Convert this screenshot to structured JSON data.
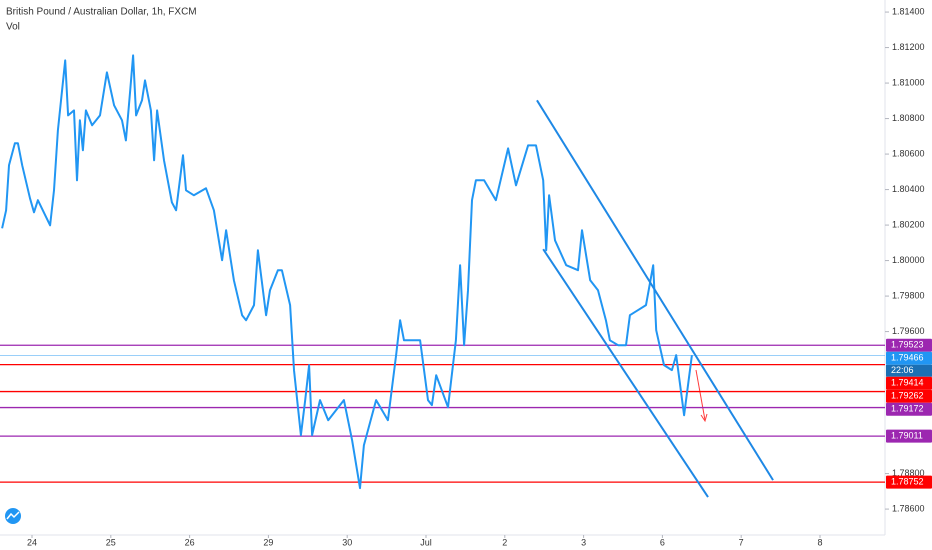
{
  "chart_data": {
    "type": "line",
    "title": "British Pound / Australian Dollar, 1h, FXCM",
    "subtitle": "Vol",
    "color": "#2196f3",
    "xlim": [
      -9.75,
      259.8
    ],
    "ylim": [
      1.78454,
      1.81468
    ],
    "xticks": [
      {
        "value": 0,
        "label": "24"
      },
      {
        "value": 24,
        "label": "25"
      },
      {
        "value": 48,
        "label": "26"
      },
      {
        "value": 72,
        "label": "29"
      },
      {
        "value": 96,
        "label": "30"
      },
      {
        "value": 120,
        "label": "Jul"
      },
      {
        "value": 144,
        "label": "2"
      },
      {
        "value": 168,
        "label": "3"
      },
      {
        "value": 192,
        "label": "6"
      },
      {
        "value": 216,
        "label": "7"
      },
      {
        "value": 240,
        "label": "8"
      }
    ],
    "yticks": [
      {
        "value": 1.786,
        "label": "1.78600"
      },
      {
        "value": 1.788,
        "label": "1.78800"
      },
      {
        "value": 1.796,
        "label": "1.79600"
      },
      {
        "value": 1.798,
        "label": "1.79800"
      },
      {
        "value": 1.8,
        "label": "1.80000"
      },
      {
        "value": 1.802,
        "label": "1.80200"
      },
      {
        "value": 1.804,
        "label": "1.80400"
      },
      {
        "value": 1.806,
        "label": "1.80600"
      },
      {
        "value": 1.808,
        "label": "1.80800"
      },
      {
        "value": 1.81,
        "label": "1.81000"
      },
      {
        "value": 1.812,
        "label": "1.81200"
      },
      {
        "value": 1.814,
        "label": "1.81400"
      }
    ],
    "x": [
      -9.1,
      -7.9,
      -7.0,
      -5.2,
      -4.3,
      -3.0,
      -0.6,
      0.6,
      1.8,
      5.5,
      6.7,
      7.9,
      10.1,
      11.0,
      12.8,
      13.7,
      14.6,
      15.5,
      16.4,
      18.3,
      20.7,
      22.8,
      25.0,
      27.4,
      28.6,
      29.9,
      30.8,
      31.7,
      33.5,
      34.4,
      36.2,
      37.2,
      38.1,
      40.2,
      42.6,
      43.9,
      46.0,
      46.9,
      49.3,
      53.0,
      55.4,
      57.9,
      59.1,
      61.5,
      64.0,
      65.2,
      67.6,
      68.8,
      71.3,
      72.5,
      74.9,
      76.1,
      78.6,
      79.8,
      81.9,
      83.2,
      84.4,
      85.3,
      87.7,
      90.2,
      95.0,
      97.5,
      99.9,
      101.1,
      104.8,
      108.4,
      110.9,
      112.1,
      113.3,
      118.2,
      120.6,
      121.8,
      123.1,
      126.7,
      129.1,
      130.4,
      131.6,
      132.8,
      134.0,
      135.2,
      137.7,
      141.3,
      145.0,
      147.4,
      151.1,
      153.5,
      155.7,
      156.6,
      157.5,
      159.3,
      162.7,
      166.3,
      167.5,
      170.0,
      172.4,
      174.8,
      176.0,
      178.5,
      180.9,
      182.1,
      187.0,
      189.2,
      190.1,
      192.5,
      194.9,
      196.2,
      198.6,
      201.0
    ],
    "values": [
      1.80182,
      1.80283,
      1.80537,
      1.80661,
      1.80661,
      1.80537,
      1.80351,
      1.80272,
      1.8034,
      1.80199,
      1.80396,
      1.80734,
      1.81128,
      1.80818,
      1.80846,
      1.80452,
      1.8079,
      1.80621,
      1.80846,
      1.80762,
      1.80818,
      1.8106,
      1.80875,
      1.8079,
      1.80677,
      1.80959,
      1.81156,
      1.80818,
      1.80903,
      1.81015,
      1.80846,
      1.80565,
      1.80846,
      1.80565,
      1.80328,
      1.80283,
      1.80593,
      1.80396,
      1.80368,
      1.80407,
      1.80283,
      1.80002,
      1.80171,
      1.79889,
      1.79692,
      1.79664,
      1.79749,
      1.80058,
      1.79692,
      1.79833,
      1.79946,
      1.79946,
      1.79749,
      1.79383,
      1.79017,
      1.79214,
      1.79411,
      1.79017,
      1.79214,
      1.79101,
      1.79214,
      1.78988,
      1.78718,
      1.7896,
      1.79214,
      1.79101,
      1.79467,
      1.79664,
      1.79551,
      1.79551,
      1.79214,
      1.79186,
      1.79354,
      1.79174,
      1.79551,
      1.79974,
      1.79523,
      1.79833,
      1.8034,
      1.80452,
      1.80452,
      1.8034,
      1.80632,
      1.80424,
      1.80649,
      1.80649,
      1.80452,
      1.80058,
      1.80368,
      1.80114,
      1.79974,
      1.79946,
      1.80171,
      1.79889,
      1.79833,
      1.79664,
      1.79551,
      1.79523,
      1.79523,
      1.79692,
      1.79749,
      1.79974,
      1.79608,
      1.79411,
      1.79383,
      1.79467,
      1.79129,
      1.79467
    ],
    "trendlines": [
      {
        "color": "#1e88e5",
        "x": [
          153.8,
          225.7
        ],
        "values": [
          1.80903,
          1.78763
        ]
      },
      {
        "color": "#1e88e5",
        "x": [
          155.7,
          205.9
        ],
        "values": [
          1.80064,
          1.78668
        ]
      }
    ],
    "levels": [
      {
        "value": 1.79523,
        "color": "#9c27b0"
      },
      {
        "value": 1.79414,
        "color": "#ff0000"
      },
      {
        "value": 1.79262,
        "color": "#ff0000"
      },
      {
        "value": 1.79172,
        "color": "#9c27b0"
      },
      {
        "value": 1.79011,
        "color": "#9c27b0"
      },
      {
        "value": 1.78752,
        "color": "#ff0000"
      }
    ],
    "last_price": {
      "value": 1.79466,
      "color": "#2196f3",
      "countdown": "22:06"
    }
  }
}
